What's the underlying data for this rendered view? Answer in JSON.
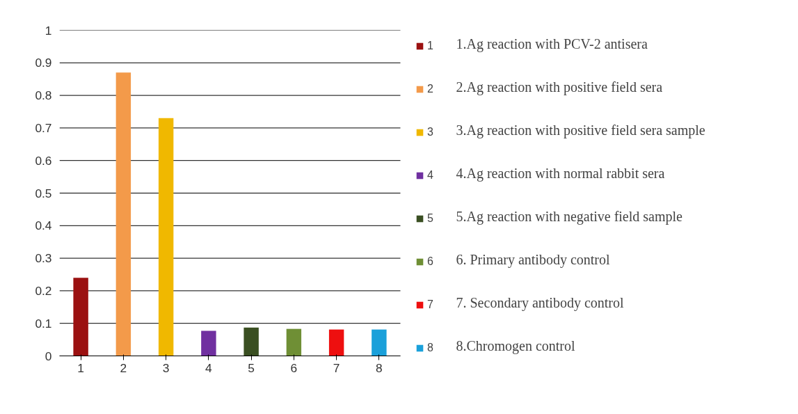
{
  "chart_data": {
    "type": "bar",
    "categories": [
      "1",
      "2",
      "3",
      "4",
      "5",
      "6",
      "7",
      "8"
    ],
    "series": [
      {
        "name": "1",
        "color": "#9b1111",
        "values": [
          0.24,
          null,
          null,
          null,
          null,
          null,
          null,
          null
        ]
      },
      {
        "name": "2",
        "color": "#f39a4a",
        "values": [
          null,
          0.87,
          null,
          null,
          null,
          null,
          null,
          null
        ]
      },
      {
        "name": "3",
        "color": "#f0b800",
        "values": [
          null,
          null,
          0.73,
          null,
          null,
          null,
          null,
          null
        ]
      },
      {
        "name": "4",
        "color": "#7030a0",
        "values": [
          null,
          null,
          null,
          0.077,
          null,
          null,
          null,
          null
        ]
      },
      {
        "name": "5",
        "color": "#3a4f22",
        "values": [
          null,
          null,
          null,
          null,
          0.087,
          null,
          null,
          null
        ]
      },
      {
        "name": "6",
        "color": "#6f8f35",
        "values": [
          null,
          null,
          null,
          null,
          null,
          0.083,
          null,
          null
        ]
      },
      {
        "name": "7",
        "color": "#ee0f0f",
        "values": [
          null,
          null,
          null,
          null,
          null,
          null,
          0.081,
          null
        ]
      },
      {
        "name": "8",
        "color": "#1aa0da",
        "values": [
          null,
          null,
          null,
          null,
          null,
          null,
          null,
          0.081
        ]
      }
    ],
    "ylim": [
      0,
      1
    ],
    "yticks": [
      0,
      0.1,
      0.2,
      0.3,
      0.4,
      0.5,
      0.6,
      0.7,
      0.8,
      0.9,
      1
    ],
    "grid": "y",
    "legend": "right",
    "annotations": [
      "1.Ag reaction with PCV-2 antisera",
      "2.Ag reaction with positive field sera",
      "3.Ag reaction with positive field sera sample",
      "4.Ag reaction with normal rabbit sera",
      "5.Ag reaction with negative field sample",
      "6. Primary antibody control",
      "7. Secondary antibody control",
      "8.Chromogen control"
    ]
  }
}
